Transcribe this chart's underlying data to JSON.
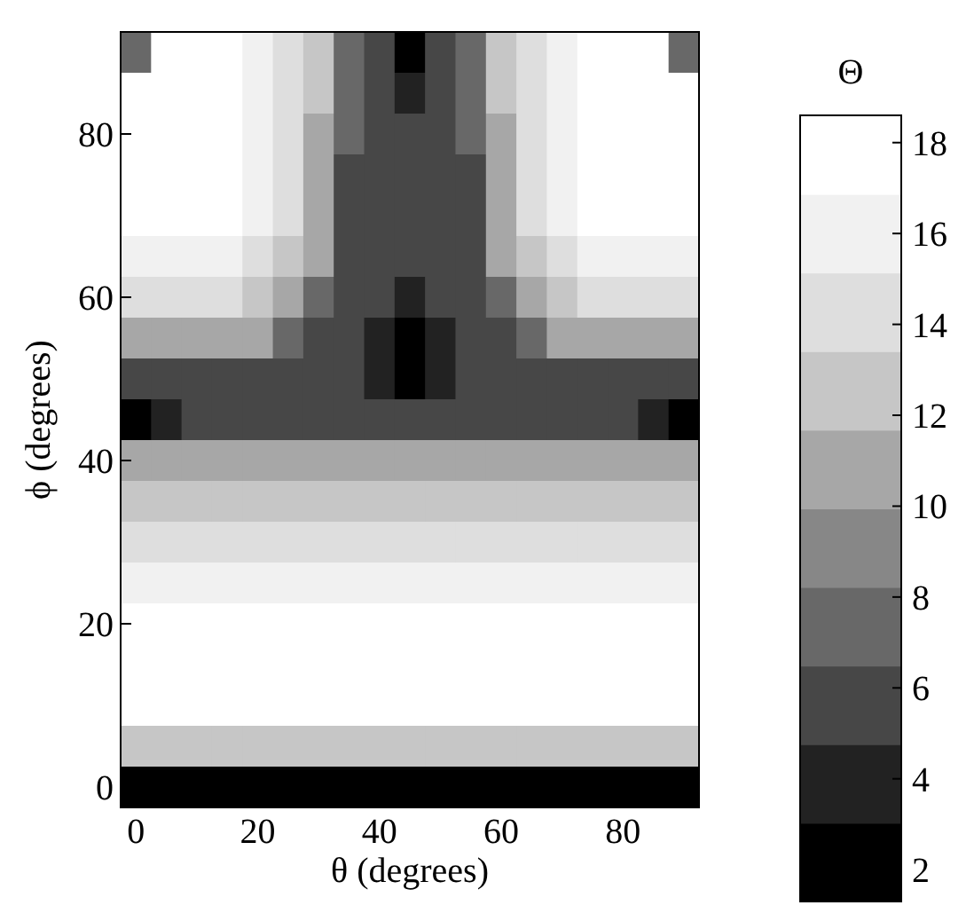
{
  "chart_data": {
    "type": "heatmap",
    "xlabel": "θ (degrees)",
    "ylabel": "ϕ (degrees)",
    "clabel": "Θ",
    "categories": [
      "0",
      null,
      null,
      null,
      "20",
      null,
      null,
      null,
      "40",
      null,
      null,
      null,
      "60",
      null,
      null,
      null,
      "80",
      null,
      null
    ],
    "y_categories": [
      null,
      null,
      "80",
      null,
      null,
      null,
      "60",
      null,
      null,
      null,
      "40",
      null,
      null,
      null,
      "20",
      null,
      null,
      null,
      "0"
    ],
    "cells": [
      [
        8,
        18,
        18,
        18,
        16,
        14,
        12,
        8,
        6,
        2,
        6,
        8,
        12,
        14,
        16,
        18,
        18,
        18,
        8
      ],
      [
        18,
        18,
        18,
        18,
        16,
        14,
        12,
        8,
        6,
        4,
        6,
        8,
        12,
        14,
        16,
        18,
        18,
        18,
        18
      ],
      [
        18,
        18,
        18,
        18,
        16,
        14,
        10,
        8,
        6,
        6,
        6,
        8,
        10,
        14,
        16,
        18,
        18,
        18,
        18
      ],
      [
        18,
        18,
        18,
        18,
        16,
        14,
        10,
        6,
        6,
        6,
        6,
        6,
        10,
        14,
        16,
        18,
        18,
        18,
        18
      ],
      [
        18,
        18,
        18,
        18,
        16,
        14,
        10,
        6,
        6,
        6,
        6,
        6,
        10,
        14,
        16,
        18,
        18,
        18,
        18
      ],
      [
        16,
        16,
        16,
        16,
        14,
        12,
        10,
        6,
        6,
        6,
        6,
        6,
        10,
        12,
        14,
        16,
        16,
        16,
        16
      ],
      [
        14,
        14,
        14,
        14,
        12,
        10,
        8,
        6,
        6,
        4,
        6,
        6,
        8,
        10,
        12,
        14,
        14,
        14,
        14
      ],
      [
        10,
        10,
        10,
        10,
        10,
        8,
        6,
        6,
        4,
        2,
        4,
        6,
        6,
        8,
        10,
        10,
        10,
        10,
        10
      ],
      [
        6,
        6,
        6,
        6,
        6,
        6,
        6,
        6,
        4,
        2,
        4,
        6,
        6,
        6,
        6,
        6,
        6,
        6,
        6
      ],
      [
        2,
        4,
        6,
        6,
        6,
        6,
        6,
        6,
        6,
        6,
        6,
        6,
        6,
        6,
        6,
        6,
        6,
        4,
        2
      ],
      [
        10,
        10,
        10,
        10,
        10,
        10,
        10,
        10,
        10,
        10,
        10,
        10,
        10,
        10,
        10,
        10,
        10,
        10,
        10
      ],
      [
        12,
        12,
        12,
        12,
        12,
        12,
        12,
        12,
        12,
        12,
        12,
        12,
        12,
        12,
        12,
        12,
        12,
        12,
        12
      ],
      [
        14,
        14,
        14,
        14,
        14,
        14,
        14,
        14,
        14,
        14,
        14,
        14,
        14,
        14,
        14,
        14,
        14,
        14,
        14
      ],
      [
        16,
        16,
        16,
        16,
        16,
        16,
        16,
        16,
        16,
        16,
        16,
        16,
        16,
        16,
        16,
        16,
        16,
        16,
        16
      ],
      [
        18,
        18,
        18,
        18,
        18,
        18,
        18,
        18,
        18,
        18,
        18,
        18,
        18,
        18,
        18,
        18,
        18,
        18,
        18
      ],
      [
        18,
        18,
        18,
        18,
        18,
        18,
        18,
        18,
        18,
        18,
        18,
        18,
        18,
        18,
        18,
        18,
        18,
        18,
        18
      ],
      [
        18,
        18,
        18,
        18,
        18,
        18,
        18,
        18,
        18,
        18,
        18,
        18,
        18,
        18,
        18,
        18,
        18,
        18,
        18
      ],
      [
        12,
        12,
        12,
        12,
        12,
        12,
        12,
        12,
        12,
        12,
        12,
        12,
        12,
        12,
        12,
        12,
        12,
        12,
        12
      ],
      [
        2,
        2,
        2,
        2,
        2,
        2,
        2,
        2,
        2,
        2,
        2,
        2,
        2,
        2,
        2,
        2,
        2,
        2,
        2
      ]
    ],
    "clim": [
      1.3,
      18.6
    ],
    "cticks": [
      2,
      4,
      6,
      8,
      10,
      12,
      14,
      16,
      18
    ]
  }
}
